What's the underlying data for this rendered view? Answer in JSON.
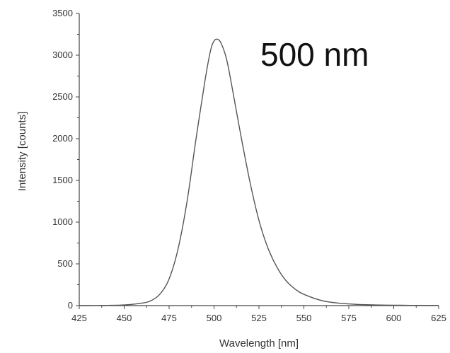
{
  "chart_data": {
    "type": "line",
    "title": "",
    "annotation": "500 nm",
    "xlabel": "Wavelength [nm]",
    "ylabel": "Intensity [counts]",
    "xlim": [
      425,
      625
    ],
    "ylim": [
      0,
      3500
    ],
    "x_ticks": [
      "425",
      "450",
      "475",
      "500",
      "525",
      "550",
      "575",
      "600",
      "625"
    ],
    "y_ticks": [
      "0",
      "500",
      "1000",
      "1500",
      "2000",
      "2500",
      "3000",
      "3500"
    ],
    "grid": false,
    "legend": "none",
    "line_color": "#555555",
    "series": [
      {
        "x": [
          425,
          440,
          450,
          460,
          465,
          470,
          475,
          480,
          485,
          490,
          495,
          498,
          500,
          502,
          504,
          507,
          510,
          515,
          520,
          525,
          530,
          535,
          540,
          545,
          550,
          560,
          570,
          580,
          590,
          600,
          610,
          625
        ],
        "y": [
          0,
          3,
          8,
          30,
          60,
          140,
          320,
          680,
          1250,
          2000,
          2700,
          3050,
          3170,
          3190,
          3140,
          2950,
          2620,
          2030,
          1480,
          1020,
          690,
          460,
          300,
          200,
          135,
          60,
          28,
          14,
          8,
          5,
          3,
          2
        ]
      }
    ]
  }
}
